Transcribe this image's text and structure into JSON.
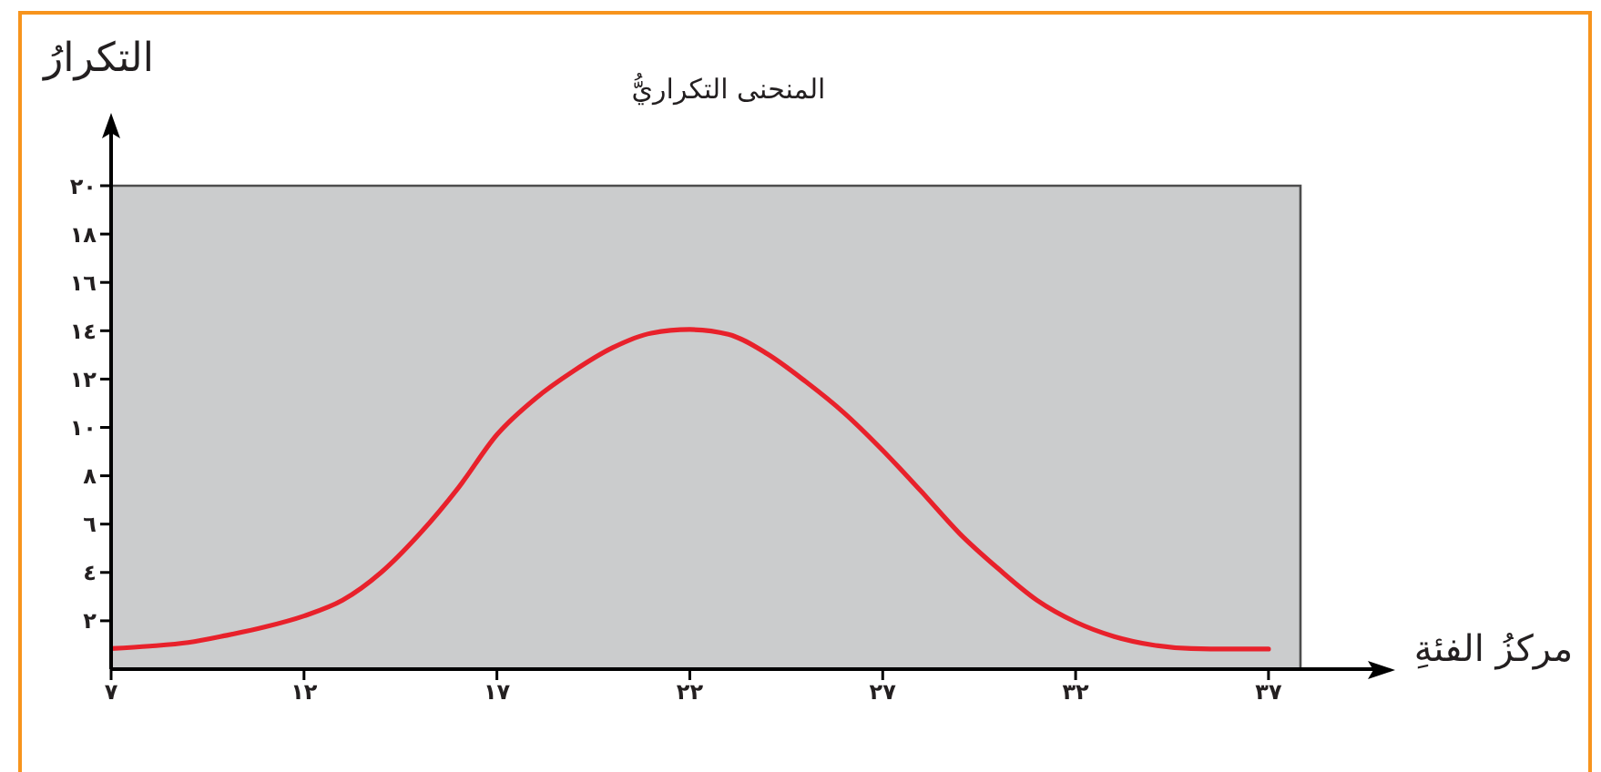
{
  "chart_data": {
    "type": "line",
    "title": "المنحنى التكراريُّ",
    "xlabel": "مركزُ الفئةِ",
    "ylabel": "التكرارُ",
    "x": [
      7,
      8,
      9,
      10,
      11,
      12,
      13,
      14,
      15,
      16,
      17,
      18,
      19,
      20,
      21,
      22,
      23,
      24,
      25,
      26,
      27,
      28,
      29,
      30,
      31,
      32,
      33,
      34,
      35,
      36,
      37
    ],
    "series": [
      {
        "color": "#e8212b",
        "values": [
          0.85,
          0.95,
          1.1,
          1.4,
          1.75,
          2.2,
          2.85,
          4.0,
          5.6,
          7.5,
          9.7,
          11.2,
          12.35,
          13.3,
          13.9,
          14.05,
          13.85,
          13.05,
          11.9,
          10.6,
          9.05,
          7.35,
          5.6,
          4.15,
          2.85,
          1.95,
          1.35,
          1.0,
          0.85,
          0.83,
          0.83
        ]
      }
    ],
    "xlim": [
      7,
      40
    ],
    "ylim": [
      0,
      20
    ],
    "xticks": [
      {
        "value": 7,
        "label": "٧"
      },
      {
        "value": 12,
        "label": "١٢"
      },
      {
        "value": 17,
        "label": "١٧"
      },
      {
        "value": 22,
        "label": "٢٢"
      },
      {
        "value": 27,
        "label": "٢٧"
      },
      {
        "value": 32,
        "label": "٣٢"
      },
      {
        "value": 37,
        "label": "٣٧"
      }
    ],
    "yticks": [
      {
        "value": 2,
        "label": "٢"
      },
      {
        "value": 4,
        "label": "٤"
      },
      {
        "value": 6,
        "label": "٦"
      },
      {
        "value": 8,
        "label": "٨"
      },
      {
        "value": 10,
        "label": "١٠"
      },
      {
        "value": 12,
        "label": "١٢"
      },
      {
        "value": 14,
        "label": "١٤"
      },
      {
        "value": 16,
        "label": "١٦"
      },
      {
        "value": 18,
        "label": "١٨"
      },
      {
        "value": 20,
        "label": "٢٠"
      }
    ],
    "marker": "none",
    "line_style": "solid"
  }
}
